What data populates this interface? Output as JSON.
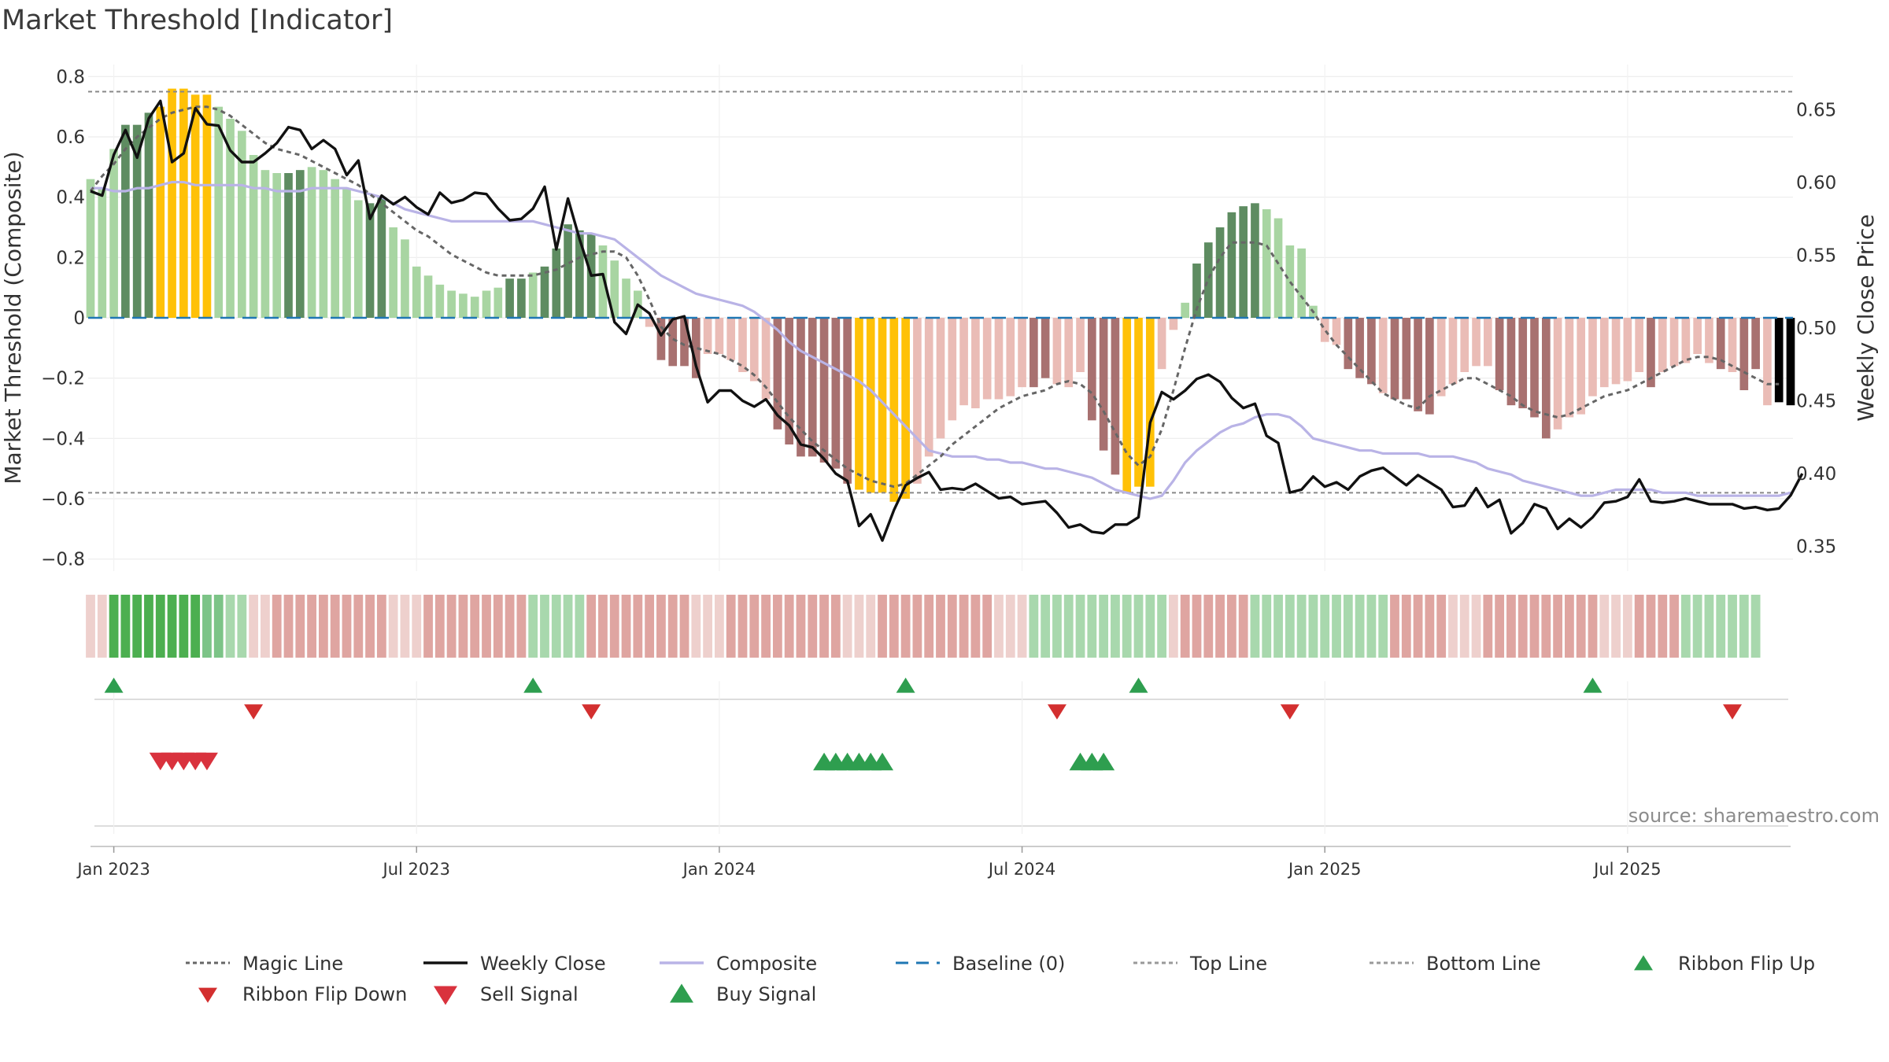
{
  "title": "Market Threshold [Indicator]",
  "source": "source: sharemaestro.com",
  "chart_data": {
    "type": "bar",
    "ylabel_left": "Market Threshold (Composite)",
    "ylabel_right": "Weekly Close Price",
    "ylim_left": [
      -0.84,
      0.84
    ],
    "ylim_right": [
      0.333,
      0.681
    ],
    "yticks_left": [
      0.8,
      0.6,
      0.4,
      0.2,
      0,
      -0.2,
      -0.4,
      -0.6,
      -0.8
    ],
    "yticks_left_labels": [
      "0.8",
      "0.6",
      "0.4",
      "0.2",
      "0",
      "−0.2",
      "−0.4",
      "−0.6",
      "−0.8"
    ],
    "yticks_right": [
      0.65,
      0.6,
      0.55,
      0.5,
      0.45,
      0.4,
      0.35
    ],
    "yticks_right_labels": [
      "0.65",
      "0.60",
      "0.55",
      "0.50",
      "0.45",
      "0.40",
      "0.35"
    ],
    "xticks": [
      "Jan 2023",
      "Jul 2023",
      "Jan 2024",
      "Jul 2024",
      "Jan 2025",
      "Jul 2025"
    ],
    "xtick_weeks": [
      2,
      28,
      54,
      80,
      106,
      132
    ],
    "top_line": 0.75,
    "bottom_line": -0.58,
    "baseline": 0,
    "composite_bars": [
      0.46,
      0.43,
      0.56,
      0.64,
      0.64,
      0.68,
      0.7,
      0.76,
      0.76,
      0.74,
      0.74,
      0.7,
      0.66,
      0.62,
      0.54,
      0.49,
      0.48,
      0.48,
      0.49,
      0.5,
      0.49,
      0.46,
      0.43,
      0.39,
      0.38,
      0.4,
      0.3,
      0.26,
      0.17,
      0.14,
      0.11,
      0.09,
      0.08,
      0.07,
      0.09,
      0.1,
      0.13,
      0.13,
      0.15,
      0.17,
      0.23,
      0.31,
      0.29,
      0.28,
      0.24,
      0.19,
      0.13,
      0.09,
      -0.03,
      -0.14,
      -0.16,
      -0.16,
      -0.2,
      -0.12,
      -0.12,
      -0.14,
      -0.18,
      -0.21,
      -0.27,
      -0.37,
      -0.42,
      -0.46,
      -0.46,
      -0.48,
      -0.5,
      -0.55,
      -0.57,
      -0.58,
      -0.58,
      -0.61,
      -0.6,
      -0.55,
      -0.46,
      -0.4,
      -0.34,
      -0.29,
      -0.3,
      -0.27,
      -0.27,
      -0.26,
      -0.23,
      -0.23,
      -0.2,
      -0.22,
      -0.23,
      -0.18,
      -0.34,
      -0.44,
      -0.52,
      -0.58,
      -0.56,
      -0.56,
      -0.17,
      -0.04,
      0.05,
      0.18,
      0.25,
      0.3,
      0.35,
      0.37,
      0.38,
      0.36,
      0.33,
      0.24,
      0.23,
      0.04,
      -0.08,
      -0.09,
      -0.17,
      -0.2,
      -0.22,
      -0.25,
      -0.27,
      -0.27,
      -0.31,
      -0.32,
      -0.26,
      -0.22,
      -0.18,
      -0.16,
      -0.16,
      -0.24,
      -0.29,
      -0.3,
      -0.33,
      -0.4,
      -0.37,
      -0.33,
      -0.32,
      -0.26,
      -0.23,
      -0.22,
      -0.21,
      -0.18,
      -0.23,
      -0.18,
      -0.16,
      -0.15,
      -0.12,
      -0.15,
      -0.17,
      -0.18,
      -0.24,
      -0.17,
      -0.29,
      -0.28,
      -0.29
    ],
    "composite_bar_color_class": [
      "lg",
      "lg",
      "lg",
      "dg",
      "dg",
      "dg",
      "y",
      "y",
      "y",
      "y",
      "y",
      "lg",
      "lg",
      "lg",
      "lg",
      "lg",
      "lg",
      "dg",
      "dg",
      "lg",
      "lg",
      "lg",
      "lg",
      "lg",
      "dg",
      "dg",
      "lg",
      "lg",
      "lg",
      "lg",
      "lg",
      "lg",
      "lg",
      "lg",
      "lg",
      "lg",
      "dg",
      "dg",
      "lg",
      "dg",
      "dg",
      "dg",
      "dg",
      "dg",
      "lg",
      "lg",
      "lg",
      "lg",
      "lr",
      "dr",
      "dr",
      "dr",
      "dr",
      "lr",
      "lr",
      "lr",
      "lr",
      "lr",
      "lr",
      "dr",
      "dr",
      "dr",
      "dr",
      "dr",
      "dr",
      "dr",
      "y",
      "y",
      "y",
      "y",
      "y",
      "lr",
      "lr",
      "lr",
      "lr",
      "lr",
      "lr",
      "lr",
      "lr",
      "lr",
      "lr",
      "dr",
      "dr",
      "lr",
      "lr",
      "lr",
      "dr",
      "dr",
      "dr",
      "y",
      "y",
      "y",
      "lr",
      "lr",
      "lg",
      "dg",
      "dg",
      "dg",
      "dg",
      "dg",
      "dg",
      "lg",
      "lg",
      "lg",
      "lg",
      "lg",
      "lr",
      "lr",
      "dr",
      "dr",
      "dr",
      "lr",
      "dr",
      "dr",
      "dr",
      "dr",
      "lr",
      "lr",
      "lr",
      "lr",
      "lr",
      "dr",
      "dr",
      "dr",
      "dr",
      "dr",
      "lr",
      "lr",
      "lr",
      "lr",
      "lr",
      "lr",
      "lr",
      "lr",
      "dr",
      "lr",
      "lr",
      "lr",
      "lr",
      "lr",
      "dr",
      "lr",
      "dr",
      "dr",
      "lr"
    ],
    "composite_line": [
      0.43,
      0.43,
      0.42,
      0.42,
      0.43,
      0.43,
      0.44,
      0.45,
      0.45,
      0.44,
      0.44,
      0.44,
      0.44,
      0.44,
      0.43,
      0.43,
      0.42,
      0.42,
      0.42,
      0.43,
      0.43,
      0.43,
      0.43,
      0.42,
      0.41,
      0.4,
      0.38,
      0.36,
      0.35,
      0.34,
      0.33,
      0.32,
      0.32,
      0.32,
      0.32,
      0.32,
      0.32,
      0.32,
      0.32,
      0.31,
      0.3,
      0.29,
      0.28,
      0.28,
      0.27,
      0.26,
      0.23,
      0.2,
      0.17,
      0.14,
      0.12,
      0.1,
      0.08,
      0.07,
      0.06,
      0.05,
      0.04,
      0.02,
      -0.01,
      -0.04,
      -0.08,
      -0.11,
      -0.13,
      -0.15,
      -0.17,
      -0.19,
      -0.21,
      -0.24,
      -0.28,
      -0.32,
      -0.36,
      -0.4,
      -0.44,
      -0.45,
      -0.46,
      -0.46,
      -0.46,
      -0.47,
      -0.47,
      -0.48,
      -0.48,
      -0.49,
      -0.5,
      -0.5,
      -0.51,
      -0.52,
      -0.53,
      -0.55,
      -0.57,
      -0.58,
      -0.59,
      -0.6,
      -0.59,
      -0.54,
      -0.48,
      -0.44,
      -0.41,
      -0.38,
      -0.36,
      -0.35,
      -0.33,
      -0.32,
      -0.32,
      -0.33,
      -0.36,
      -0.4,
      -0.41,
      -0.42,
      -0.43,
      -0.44,
      -0.44,
      -0.45,
      -0.45,
      -0.45,
      -0.45,
      -0.46,
      -0.46,
      -0.46,
      -0.47,
      -0.48,
      -0.5,
      -0.51,
      -0.52,
      -0.54,
      -0.55,
      -0.56,
      -0.57,
      -0.58,
      -0.59,
      -0.59,
      -0.58,
      -0.57,
      -0.57,
      -0.57,
      -0.57,
      -0.58,
      -0.58,
      -0.58,
      -0.59,
      -0.59,
      -0.59,
      -0.59,
      -0.59,
      -0.59,
      -0.59,
      -0.59,
      -0.58
    ],
    "magic_line": [
      0.42,
      0.47,
      0.51,
      0.56,
      0.6,
      0.63,
      0.66,
      0.68,
      0.69,
      0.7,
      0.7,
      0.69,
      0.67,
      0.64,
      0.61,
      0.58,
      0.56,
      0.55,
      0.54,
      0.52,
      0.5,
      0.48,
      0.46,
      0.44,
      0.41,
      0.38,
      0.35,
      0.32,
      0.29,
      0.27,
      0.24,
      0.21,
      0.19,
      0.17,
      0.15,
      0.14,
      0.14,
      0.14,
      0.14,
      0.15,
      0.16,
      0.18,
      0.2,
      0.21,
      0.22,
      0.22,
      0.2,
      0.14,
      0.06,
      -0.03,
      -0.07,
      -0.09,
      -0.1,
      -0.11,
      -0.12,
      -0.14,
      -0.16,
      -0.19,
      -0.23,
      -0.28,
      -0.33,
      -0.37,
      -0.41,
      -0.44,
      -0.47,
      -0.5,
      -0.52,
      -0.54,
      -0.55,
      -0.56,
      -0.55,
      -0.52,
      -0.49,
      -0.46,
      -0.42,
      -0.39,
      -0.36,
      -0.33,
      -0.3,
      -0.28,
      -0.26,
      -0.25,
      -0.24,
      -0.22,
      -0.21,
      -0.22,
      -0.25,
      -0.31,
      -0.38,
      -0.45,
      -0.49,
      -0.46,
      -0.37,
      -0.24,
      -0.1,
      0.03,
      0.13,
      0.2,
      0.25,
      0.25,
      0.25,
      0.24,
      0.18,
      0.12,
      0.07,
      0.02,
      -0.04,
      -0.09,
      -0.13,
      -0.17,
      -0.21,
      -0.25,
      -0.27,
      -0.29,
      -0.3,
      -0.26,
      -0.24,
      -0.22,
      -0.2,
      -0.2,
      -0.22,
      -0.24,
      -0.26,
      -0.29,
      -0.31,
      -0.32,
      -0.33,
      -0.32,
      -0.3,
      -0.28,
      -0.26,
      -0.25,
      -0.24,
      -0.22,
      -0.2,
      -0.18,
      -0.16,
      -0.14,
      -0.13,
      -0.13,
      -0.14,
      -0.16,
      -0.18,
      -0.2,
      -0.22,
      -0.22
    ],
    "weekly_close": [
      0.594,
      0.591,
      0.619,
      0.636,
      0.617,
      0.644,
      0.656,
      0.614,
      0.62,
      0.651,
      0.64,
      0.639,
      0.622,
      0.614,
      0.614,
      0.62,
      0.627,
      0.638,
      0.636,
      0.623,
      0.629,
      0.623,
      0.605,
      0.615,
      0.575,
      0.591,
      0.585,
      0.59,
      0.583,
      0.578,
      0.593,
      0.586,
      0.588,
      0.593,
      0.592,
      0.582,
      0.574,
      0.575,
      0.582,
      0.597,
      0.554,
      0.589,
      0.561,
      0.536,
      0.537,
      0.504,
      0.496,
      0.516,
      0.51,
      0.495,
      0.506,
      0.508,
      0.474,
      0.449,
      0.457,
      0.457,
      0.45,
      0.446,
      0.451,
      0.44,
      0.433,
      0.42,
      0.418,
      0.41,
      0.4,
      0.395,
      0.364,
      0.372,
      0.354,
      0.375,
      0.392,
      0.397,
      0.401,
      0.389,
      0.39,
      0.389,
      0.393,
      0.388,
      0.383,
      0.384,
      0.379,
      0.38,
      0.381,
      0.373,
      0.363,
      0.365,
      0.36,
      0.359,
      0.365,
      0.365,
      0.37,
      0.435,
      0.456,
      0.451,
      0.457,
      0.465,
      0.468,
      0.463,
      0.452,
      0.445,
      0.448,
      0.426,
      0.421,
      0.387,
      0.389,
      0.398,
      0.391,
      0.394,
      0.389,
      0.398,
      0.402,
      0.404,
      0.398,
      0.392,
      0.399,
      0.394,
      0.389,
      0.377,
      0.378,
      0.39,
      0.377,
      0.382,
      0.359,
      0.366,
      0.379,
      0.376,
      0.362,
      0.369,
      0.363,
      0.37,
      0.38,
      0.381,
      0.384,
      0.396,
      0.381,
      0.38,
      0.381,
      0.383,
      0.381,
      0.379,
      0.379,
      0.379,
      0.376,
      0.377,
      0.375,
      0.376,
      0.385,
      0.4
    ],
    "ribbon": [
      1,
      1,
      3,
      3,
      3,
      3,
      3,
      3,
      3,
      3,
      2,
      2,
      1,
      1,
      1,
      1,
      1,
      1,
      1,
      1,
      1,
      1,
      1,
      1,
      1,
      1,
      1,
      1,
      1,
      1,
      1,
      1,
      1,
      1,
      1,
      1,
      1,
      1,
      1,
      1,
      1,
      1,
      1,
      1,
      1,
      1,
      1,
      1,
      1,
      1,
      1,
      1,
      1,
      1,
      1,
      1,
      1,
      1,
      1,
      1,
      1,
      1,
      1,
      1,
      1,
      1,
      1,
      1,
      1,
      1,
      1,
      1,
      1,
      1,
      1,
      1,
      1,
      1,
      1,
      1,
      1,
      1,
      1,
      1,
      1,
      1,
      1,
      1,
      1,
      1,
      1,
      1,
      1,
      1,
      1,
      1,
      1,
      1,
      1,
      1,
      1,
      1,
      1,
      1,
      1,
      1,
      1,
      1,
      1,
      1,
      1,
      1,
      1,
      1,
      1,
      1,
      1,
      1,
      1,
      1,
      1,
      1,
      1,
      1,
      1,
      1,
      1,
      1,
      1,
      1,
      1,
      1,
      1,
      1,
      1,
      1,
      1,
      1,
      1,
      1,
      1,
      1,
      1,
      1
    ],
    "ribbon_sign": [
      -1,
      -1,
      1,
      1,
      1,
      1,
      1,
      1,
      1,
      1,
      1,
      1,
      1,
      1,
      -1,
      -1,
      -1,
      -1,
      -1,
      -1,
      -1,
      -1,
      -1,
      -1,
      -1,
      -1,
      -1,
      -1,
      -1,
      -1,
      -1,
      -1,
      -1,
      -1,
      -1,
      -1,
      -1,
      -1,
      1,
      1,
      1,
      1,
      1,
      -1,
      -1,
      -1,
      -1,
      -1,
      -1,
      -1,
      -1,
      -1,
      -1,
      -1,
      -1,
      -1,
      -1,
      -1,
      -1,
      -1,
      -1,
      -1,
      -1,
      -1,
      -1,
      -1,
      -1,
      -1,
      -1,
      -1,
      -1,
      -1,
      -1,
      -1,
      -1,
      -1,
      -1,
      -1,
      -1,
      -1,
      -1,
      1,
      1,
      1,
      1,
      1,
      1,
      1,
      1,
      1,
      1,
      1,
      1,
      -1,
      -1,
      -1,
      -1,
      -1,
      -1,
      -1,
      1,
      1,
      1,
      1,
      1,
      1,
      1,
      1,
      1,
      1,
      1,
      1,
      -1,
      -1,
      -1,
      -1,
      -1,
      -1,
      -1,
      -1,
      -1,
      -1,
      -1,
      -1,
      -1,
      -1,
      -1,
      -1,
      -1,
      -1,
      -1,
      -1,
      -1,
      -1,
      -1,
      -1,
      -1,
      1,
      1,
      1,
      1,
      1,
      1,
      1,
      1,
      1,
      1,
      1,
      1,
      -1,
      -1,
      -1
    ],
    "ribbon_flip_up_weeks": [
      2,
      38,
      70,
      90,
      129
    ],
    "ribbon_flip_down_weeks": [
      14,
      43,
      83,
      103,
      141
    ],
    "sell_signal_weeks": [
      6,
      7,
      8,
      9,
      10
    ],
    "buy_signal_weeks": [
      63,
      64,
      65,
      66,
      67,
      68,
      85,
      86,
      87
    ],
    "colors": {
      "light_green": "#a8d5a2",
      "dark_green": "#5e8c61",
      "yellow": "#ffc107",
      "light_red": "#eabcb6",
      "dark_red": "#a87170",
      "composite_line": "#b9b3e6",
      "weekly_close": "#111111",
      "magic_line": "#666666",
      "baseline": "#1f77b4",
      "signal_green": "#2e9e4f",
      "signal_red": "#d9323d"
    },
    "legend": [
      {
        "label": "Magic Line",
        "icon": "dotted-line"
      },
      {
        "label": "Weekly Close",
        "icon": "solid-line"
      },
      {
        "label": "Composite",
        "icon": "lavender-line"
      },
      {
        "label": "Baseline (0)",
        "icon": "dashed-line"
      },
      {
        "label": "Top Line",
        "icon": "dotted-line"
      },
      {
        "label": "Bottom Line",
        "icon": "dotted-line"
      },
      {
        "label": "Ribbon Flip Up",
        "icon": "triangle-up"
      },
      {
        "label": "Ribbon Flip Down",
        "icon": "triangle-down"
      },
      {
        "label": "Sell Signal",
        "icon": "triangle-down"
      },
      {
        "label": "Buy Signal",
        "icon": "triangle-up"
      }
    ],
    "legend_position": "bottom",
    "grid": true
  }
}
